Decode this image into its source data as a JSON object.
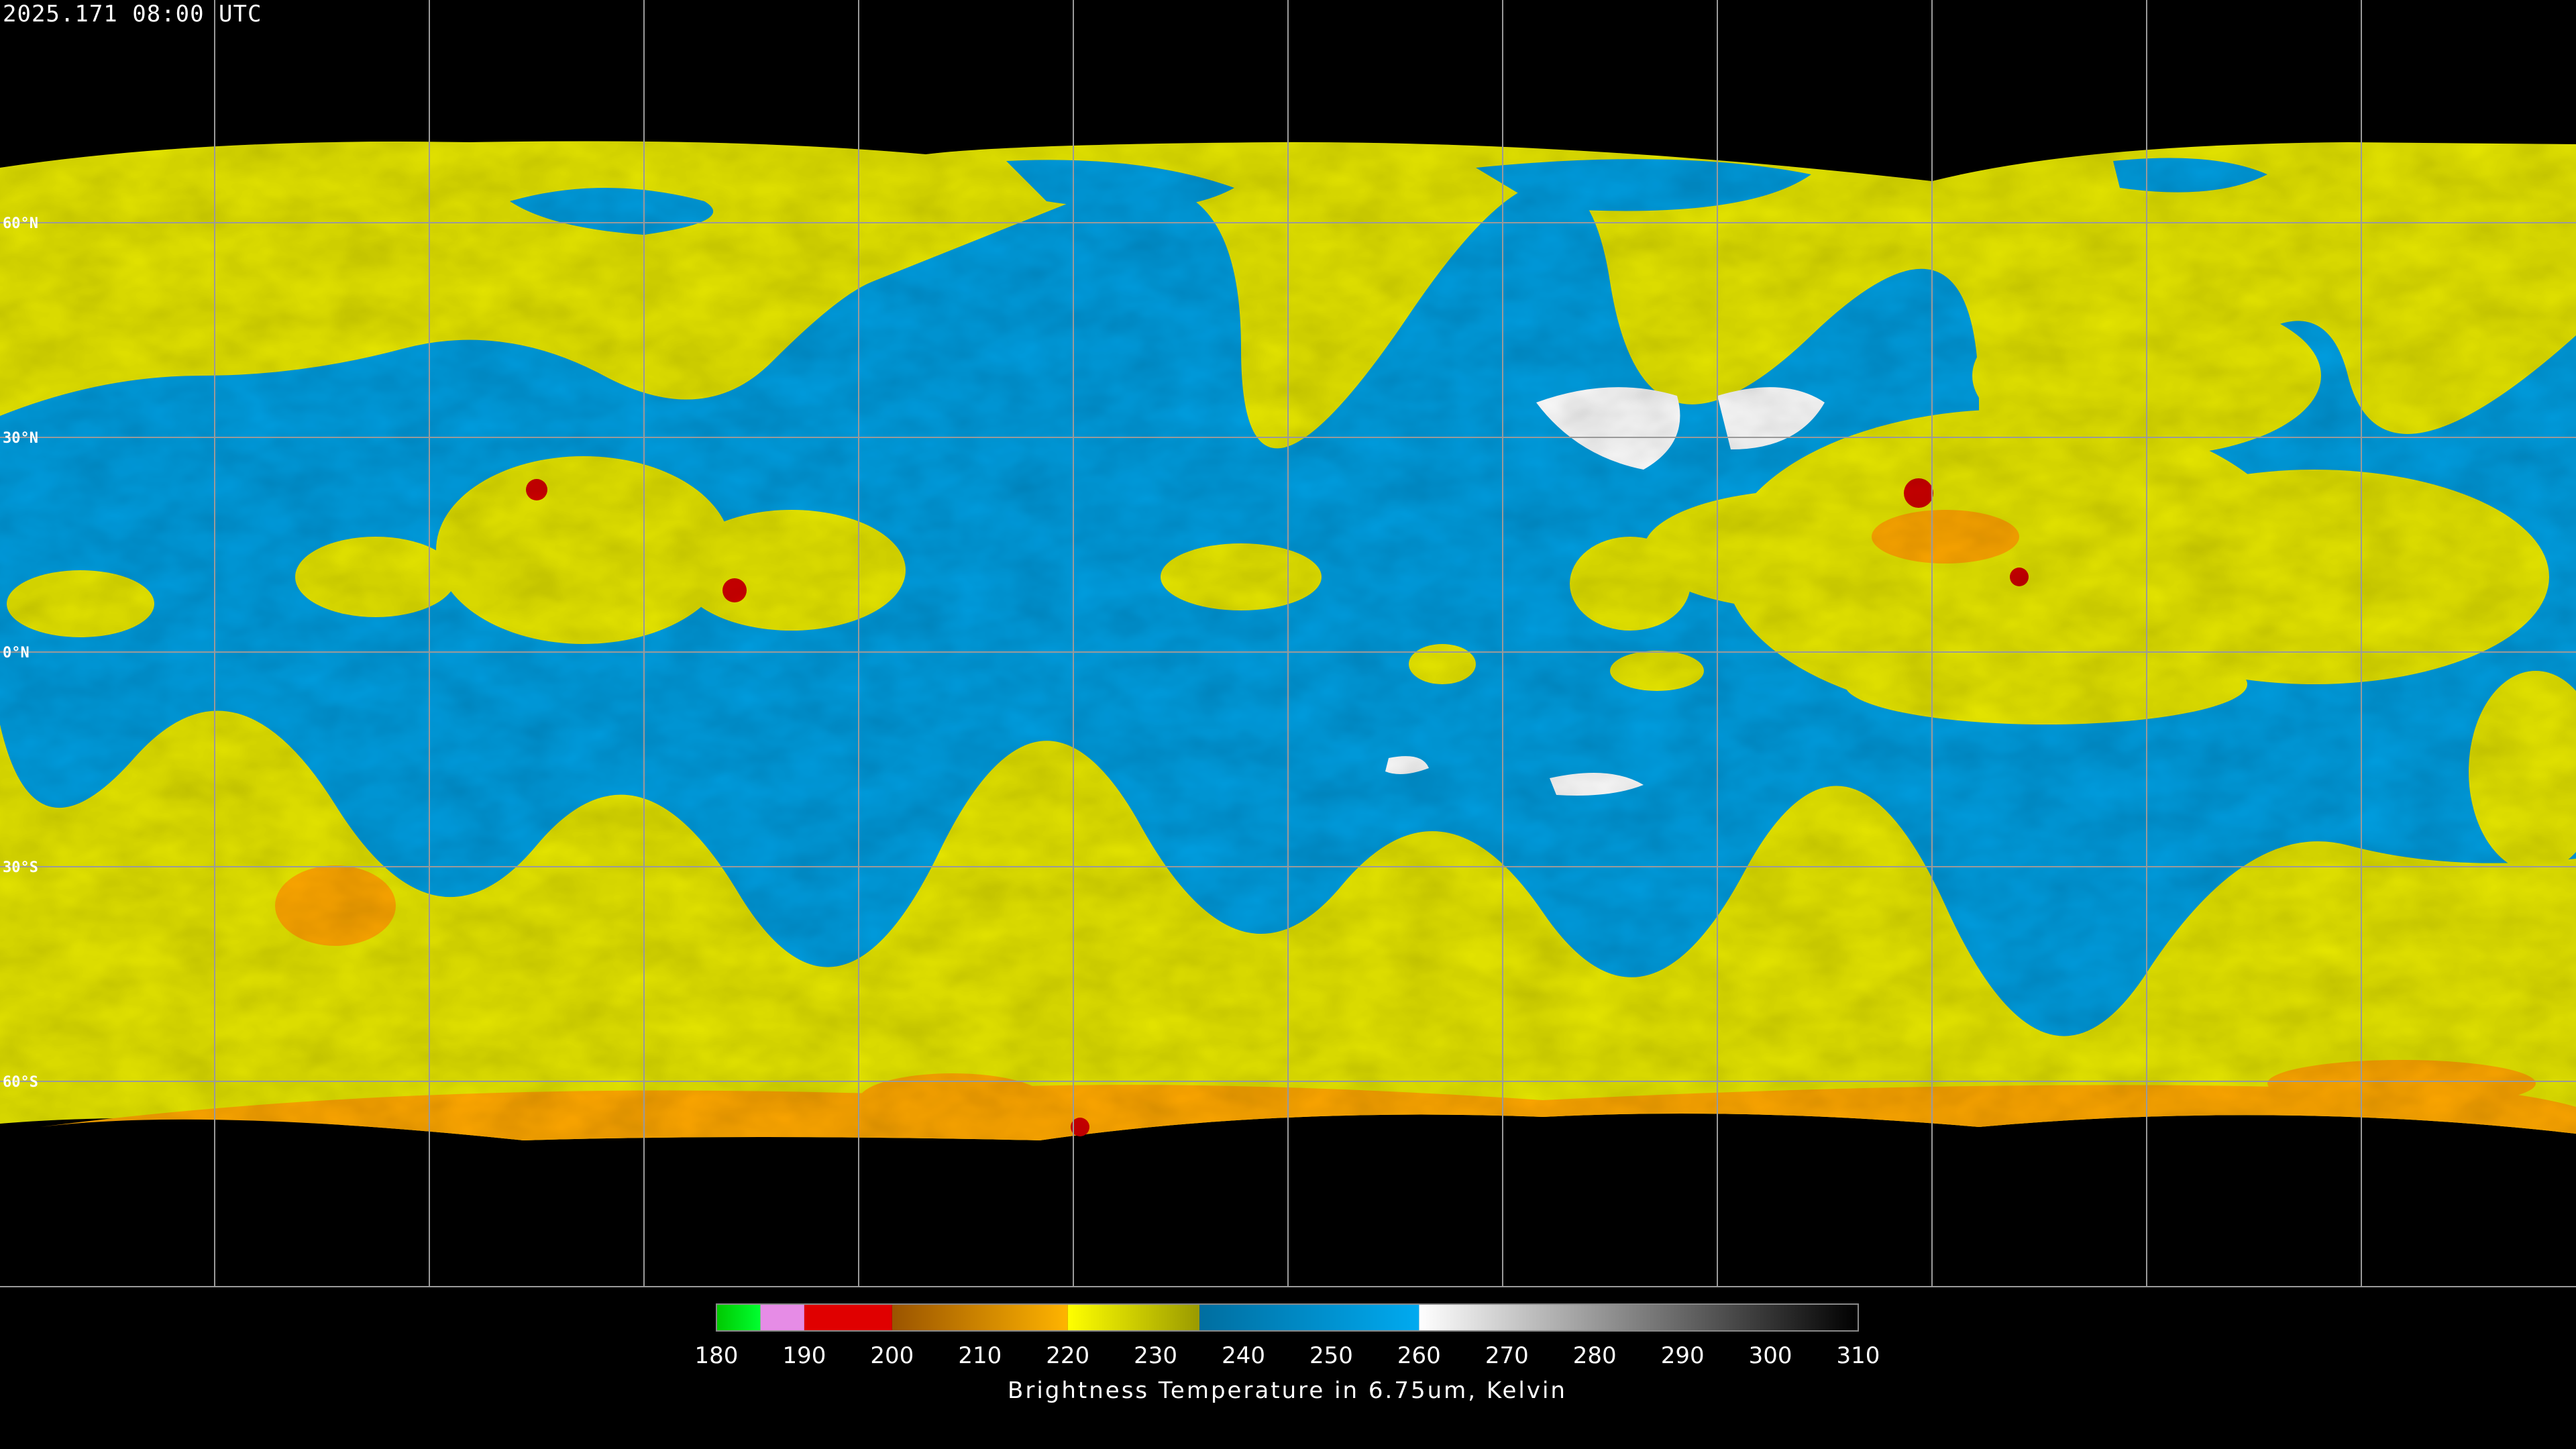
{
  "header": {
    "timestamp": "2025.171 08:00 UTC"
  },
  "map": {
    "lat_labels": [
      {
        "value": 60,
        "label": "60°N"
      },
      {
        "value": 30,
        "label": "30°N"
      },
      {
        "value": 0,
        "label": "0°N"
      },
      {
        "value": -30,
        "label": "30°S"
      },
      {
        "value": -60,
        "label": "60°S"
      }
    ]
  },
  "colorbar": {
    "title": "Brightness Temperature in 6.75um, Kelvin",
    "range": [
      180,
      310
    ],
    "ticks": [
      180,
      190,
      200,
      210,
      220,
      230,
      240,
      250,
      260,
      270,
      280,
      290,
      300,
      310
    ],
    "segments": [
      {
        "range": [
          180,
          185
        ],
        "colors": [
          "#00c800",
          "#00ff30"
        ]
      },
      {
        "range": [
          185,
          190
        ],
        "colors": [
          "#e68ce6",
          "#e68ce6"
        ]
      },
      {
        "range": [
          190,
          200
        ],
        "colors": [
          "#e00000",
          "#e00000"
        ]
      },
      {
        "range": [
          200,
          220
        ],
        "colors": [
          "#9a5400",
          "#ffb400"
        ]
      },
      {
        "range": [
          220,
          235
        ],
        "colors": [
          "#ffff00",
          "#9a9a00"
        ]
      },
      {
        "range": [
          235,
          260
        ],
        "colors": [
          "#006ea0",
          "#00aaf0"
        ]
      },
      {
        "range": [
          260,
          310
        ],
        "colors": [
          "#ffffff",
          "#000000"
        ]
      }
    ]
  }
}
